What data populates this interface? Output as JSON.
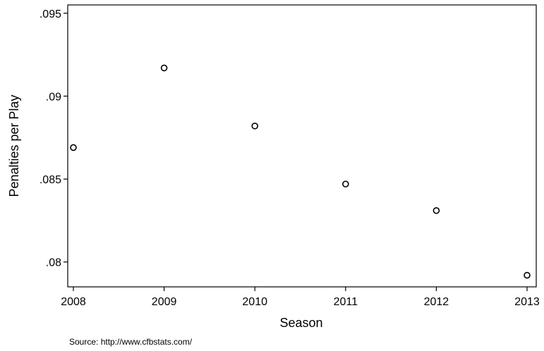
{
  "chart_data": {
    "type": "scatter",
    "title": "",
    "xlabel": "Season",
    "ylabel": "Penalties per Play",
    "x": [
      2008,
      2009,
      2010,
      2011,
      2012,
      2013
    ],
    "y": [
      0.0869,
      0.0917,
      0.0882,
      0.0847,
      0.0831,
      0.0792
    ],
    "xlim": [
      2008,
      2013
    ],
    "ylim": [
      0.0785,
      0.0955
    ],
    "x_ticks": [
      2008,
      2009,
      2010,
      2011,
      2012,
      2013
    ],
    "x_tick_labels": [
      "2008",
      "2009",
      "2010",
      "2011",
      "2012",
      "2013"
    ],
    "y_ticks": [
      0.08,
      0.085,
      0.09,
      0.095
    ],
    "y_tick_labels": [
      ".08",
      ".085",
      ".09",
      ".095"
    ],
    "marker": "hollow-circle",
    "grid": false
  },
  "source_note": "Source: http://www.cfbstats.com/"
}
